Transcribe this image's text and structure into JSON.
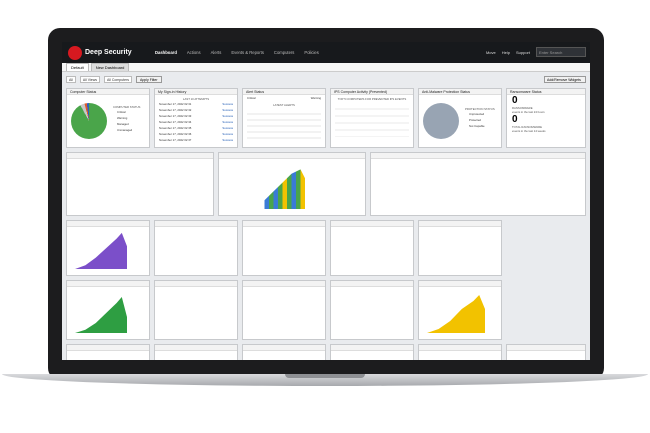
{
  "app": {
    "brand": "Deep Security",
    "nav": [
      "Dashboard",
      "Actions",
      "Alerts",
      "Events & Reports",
      "Computers",
      "Policies"
    ],
    "right": [
      "Move",
      "Help",
      "Support"
    ],
    "search_placeholder": "Enter Search"
  },
  "tabs": [
    "Default",
    "New Dashboard"
  ],
  "filters": {
    "range": "All",
    "view": "All Views",
    "computers": "All Computers",
    "apply": "Apply Filter",
    "add": "Add/Remove Widgets"
  },
  "widgets": [
    {
      "title": "Computer Status",
      "caption": "COMPUTER STATUS",
      "items": [
        "Critical",
        "Warning",
        "Managed",
        "Unmanaged"
      ]
    },
    {
      "title": "My Sign-in History",
      "caption": "LAST 10 ATTEMPTS",
      "rows": [
        "November 17, 2022 02:31",
        "November 17, 2022 02:32",
        "November 17, 2022 02:33",
        "November 17, 2022 02:34",
        "November 17, 2022 02:35",
        "November 17, 2022 02:36",
        "November 17, 2022 02:37"
      ],
      "link": "Success"
    },
    {
      "title": "Alert Status",
      "caption": "LATEST ALERTS",
      "items": [
        "Critical",
        "Warning"
      ]
    },
    {
      "title": "IPS Computer Activity (Prevented)",
      "caption": "TOP 5 COMPUTERS FOR PREVENTED IPS EVENTS"
    },
    {
      "title": "Anti-Malware Protection Status",
      "caption": "PROTECTION STATUS",
      "items": [
        "Unprotected",
        "Protected",
        "Not Capable"
      ]
    },
    {
      "title": "Ransomware Status",
      "big1": "0",
      "t1": "RANSOMWARE",
      "s1": "events in the last 24 hours",
      "big2": "0",
      "t2": "TOTAL RANSOMWARE",
      "s2": "events in the last 14 weeks"
    }
  ]
}
